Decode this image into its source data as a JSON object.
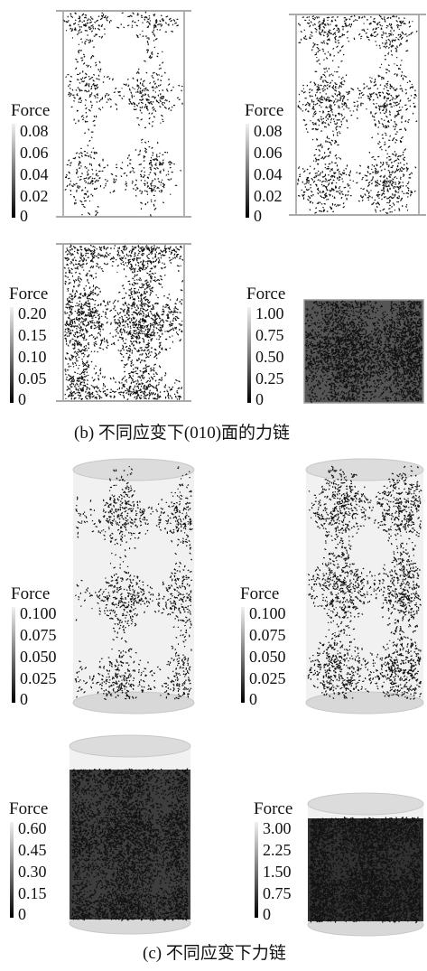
{
  "legend_title": "Force",
  "panels_b": [
    {
      "ticks": [
        "0.08",
        "0.06",
        "0.04",
        "0.02",
        "0"
      ],
      "density": 0.18
    },
    {
      "ticks": [
        "0.08",
        "0.06",
        "0.04",
        "0.02",
        "0"
      ],
      "density": 0.28
    },
    {
      "ticks": [
        "0.20",
        "0.15",
        "0.10",
        "0.05",
        "0"
      ],
      "density": 0.42
    },
    {
      "ticks": [
        "1.00",
        "0.75",
        "0.50",
        "0.25",
        "0"
      ],
      "density": 0.65
    }
  ],
  "panels_c": [
    {
      "ticks": [
        "0.100",
        "0.075",
        "0.050",
        "0.025",
        "0"
      ],
      "density": 0.18
    },
    {
      "ticks": [
        "0.100",
        "0.075",
        "0.050",
        "0.025",
        "0"
      ],
      "density": 0.26
    },
    {
      "ticks": [
        "0.60",
        "0.45",
        "0.30",
        "0.15",
        "0"
      ],
      "density": 0.7
    },
    {
      "ticks": [
        "3.00",
        "2.25",
        "1.50",
        "0.75",
        "0"
      ],
      "density": 0.8
    }
  ],
  "caption_b": "(b)  不同应变下(010)面的力链",
  "caption_c": "(c)  不同应变下力链"
}
